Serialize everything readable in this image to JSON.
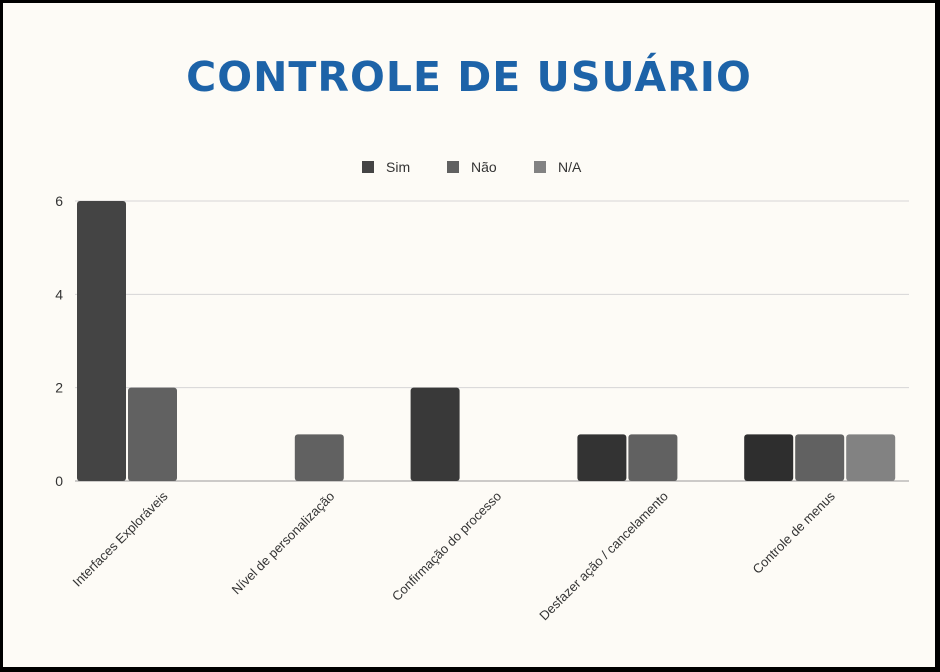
{
  "title": "CONTROLE DE USUÁRIO",
  "chart_data": {
    "type": "bar",
    "categories": [
      "Interfaces Exploráveis",
      "Nível de personalização",
      "Confirmação do processo",
      "Desfazer ação / cancelamento",
      "Controle de menus"
    ],
    "series": [
      {
        "name": "Sim",
        "values": [
          6,
          0,
          2,
          1,
          1
        ],
        "colors": [
          "#444444",
          "#444444",
          "#393939",
          "#333333",
          "#2e2e2e"
        ]
      },
      {
        "name": "Não",
        "values": [
          2,
          1,
          0,
          1,
          1
        ],
        "colors": [
          "#616161",
          "#616161",
          "#616161",
          "#616161",
          "#616161"
        ]
      },
      {
        "name": "N/A",
        "values": [
          0,
          0,
          0,
          0,
          1
        ],
        "colors": [
          "#828282",
          "#828282",
          "#828282",
          "#828282",
          "#828282"
        ]
      }
    ],
    "legend_colors": [
      "#444444",
      "#616161",
      "#828282"
    ],
    "ylim": [
      0,
      6
    ],
    "yticks": [
      0,
      2,
      4,
      6
    ],
    "grid": true,
    "legend_position": "top-center",
    "xlabel": "",
    "ylabel": ""
  }
}
